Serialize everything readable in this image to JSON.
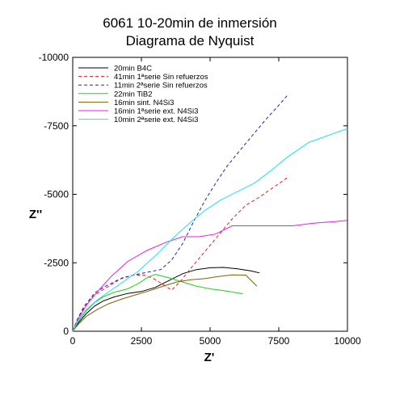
{
  "chart_data": {
    "type": "line",
    "title": "6061 10-20min de inmersión",
    "subtitle": "Diagrama de Nyquist",
    "xlabel": "Z'",
    "ylabel": "Z''",
    "xlim": [
      0,
      10000
    ],
    "ylim": [
      0,
      -10000
    ],
    "x_ticks": [
      0,
      2500,
      5000,
      7500,
      10000
    ],
    "x_tick_labels": [
      "0",
      "2500",
      "5000",
      "7500",
      "10000"
    ],
    "y_ticks": [
      0,
      -2500,
      -5000,
      -7500,
      -10000
    ],
    "y_tick_labels": [
      "0",
      "-2500",
      "-5000",
      "-7500",
      "-10000"
    ],
    "grid": false,
    "legend_position": "top-left",
    "series": [
      {
        "name": "20min B4C",
        "color": "#000000",
        "dash": "solid",
        "x": [
          0,
          200,
          500,
          800,
          1100,
          1500,
          2000,
          2500,
          3000,
          3500,
          4000,
          4500,
          5000,
          5500,
          6000,
          6500,
          6800
        ],
        "y": [
          0,
          -300,
          -650,
          -920,
          -1100,
          -1250,
          -1380,
          -1450,
          -1600,
          -1850,
          -2100,
          -2250,
          -2320,
          -2330,
          -2280,
          -2200,
          -2130
        ]
      },
      {
        "name": "41min 1ªserie Sin refuerzos",
        "color": "#e02020",
        "dash": "dashed",
        "x": [
          0,
          150,
          400,
          700,
          1000,
          1400,
          1800,
          2200,
          2600,
          2900,
          3300,
          3600,
          3900,
          4300,
          4800,
          5300,
          5800,
          6300,
          6800,
          7300,
          7800
        ],
        "y": [
          0,
          -400,
          -900,
          -1250,
          -1450,
          -1700,
          -1950,
          -2050,
          -2050,
          -1950,
          -1700,
          -1500,
          -1800,
          -2300,
          -2900,
          -3500,
          -4100,
          -4600,
          -4900,
          -5250,
          -5600
        ]
      },
      {
        "name": "11min 2ªserie Sin refuerzos",
        "color": "#2020c0",
        "dash": "dashed",
        "x": [
          0,
          200,
          500,
          800,
          1200,
          1700,
          2200,
          2700,
          3200,
          3600,
          4000,
          4400,
          4800,
          5200,
          5600,
          6000,
          6500,
          7000,
          7500,
          7800
        ],
        "y": [
          0,
          -500,
          -1000,
          -1400,
          -1650,
          -1900,
          -2050,
          -2150,
          -2250,
          -2600,
          -3200,
          -4000,
          -4750,
          -5400,
          -6000,
          -6500,
          -7100,
          -7700,
          -8250,
          -8600
        ]
      },
      {
        "name": "22min TiB2",
        "color": "#20d020",
        "dash": "solid",
        "x": [
          0,
          200,
          500,
          800,
          1100,
          1500,
          2000,
          2400,
          2700,
          3000,
          3500,
          4000,
          4500,
          5000,
          5500,
          6000,
          6200
        ],
        "y": [
          0,
          -350,
          -750,
          -1050,
          -1250,
          -1420,
          -1550,
          -1750,
          -1950,
          -2080,
          -1950,
          -1800,
          -1650,
          -1550,
          -1480,
          -1400,
          -1370
        ]
      },
      {
        "name": "16min sint. N4Si3",
        "color": "#806000",
        "dash": "solid",
        "x": [
          0,
          200,
          500,
          900,
          1300,
          1800,
          2300,
          2800,
          3300,
          3800,
          4300,
          4800,
          5300,
          5800,
          6300,
          6700
        ],
        "y": [
          0,
          -250,
          -550,
          -800,
          -1000,
          -1180,
          -1330,
          -1480,
          -1650,
          -1800,
          -1880,
          -1920,
          -2000,
          -2060,
          -2050,
          -1650
        ]
      },
      {
        "name": "16min 1ªserie ext. N4Si3",
        "color": "#e020e0",
        "dash": "solid",
        "x": [
          0,
          200,
          500,
          900,
          1400,
          2000,
          2700,
          3400,
          4000,
          4600,
          5200,
          5800,
          6500,
          7200,
          8000,
          8800,
          9500,
          10000
        ],
        "y": [
          0,
          -450,
          -950,
          -1450,
          -2000,
          -2550,
          -2950,
          -3250,
          -3450,
          -3450,
          -3550,
          -3850,
          -3850,
          -3850,
          -3850,
          -3950,
          -4000,
          -4050
        ]
      },
      {
        "name": "10min 2ªserie ext. N4Si3",
        "color": "#20e0f0",
        "dash": "solid",
        "x": [
          0,
          200,
          500,
          900,
          1400,
          1900,
          2400,
          3000,
          3600,
          4200,
          4800,
          5400,
          6000,
          6600,
          7200,
          7800,
          8600,
          9300,
          10000
        ],
        "y": [
          0,
          -400,
          -800,
          -1150,
          -1500,
          -1850,
          -2200,
          -2750,
          -3350,
          -3900,
          -4400,
          -4800,
          -5100,
          -5400,
          -5850,
          -6350,
          -6900,
          -7150,
          -7400
        ]
      }
    ]
  }
}
